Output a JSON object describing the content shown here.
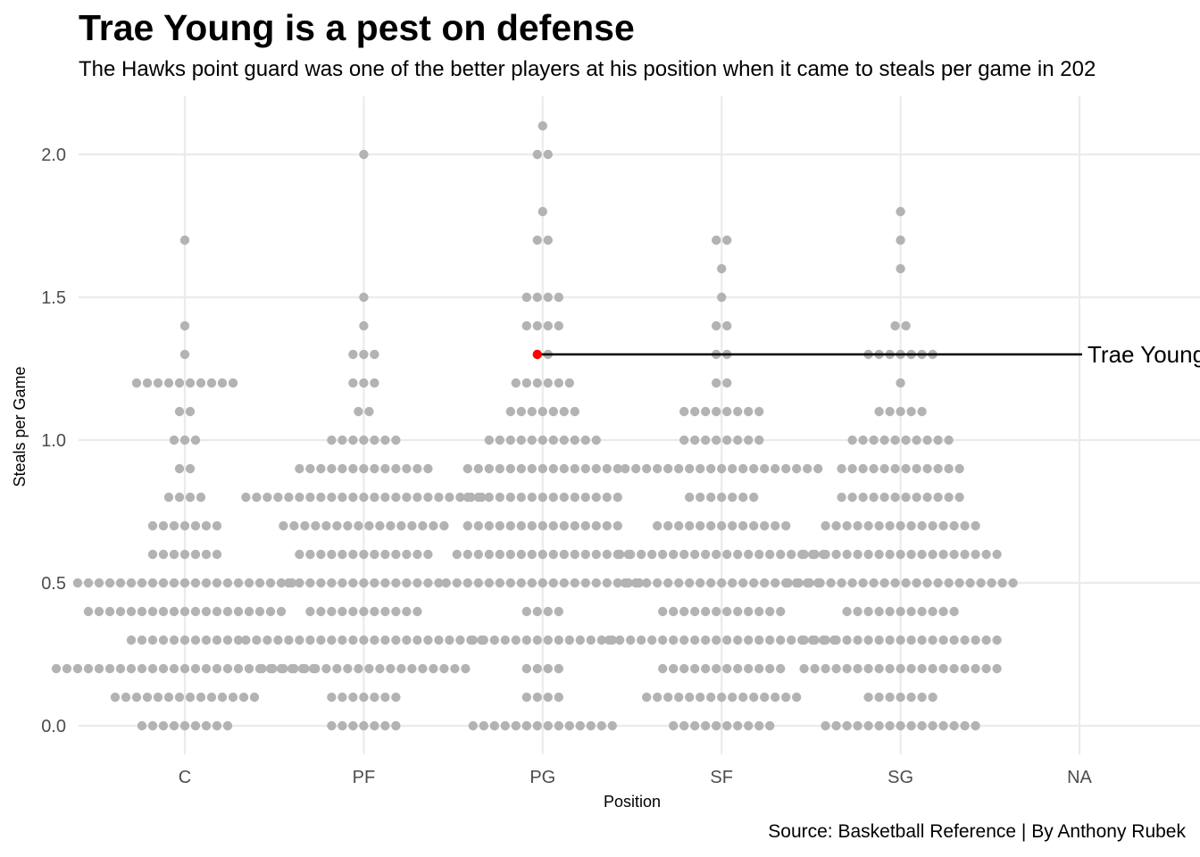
{
  "chart_data": {
    "type": "dotplot",
    "title": "Trae Young is a pest on defense",
    "subtitle": "The Hawks point guard was one of the better players at his position when it came to steals per game in 202",
    "caption": "Source: Basketball Reference | By Anthony Rubek",
    "xlabel": "Position",
    "ylabel": "Steals per Game",
    "categories": [
      "C",
      "PF",
      "PG",
      "SF",
      "SG",
      "NA"
    ],
    "ylim": [
      -0.1,
      2.2
    ],
    "y_ticks": [
      "0.0",
      "0.5",
      "1.0",
      "1.5",
      "2.0"
    ],
    "grid": true,
    "colors": {
      "dot": "#b3b3b3",
      "highlight": "#ff0000",
      "grid": "#ebebeb",
      "line": "#000000"
    },
    "counts": {
      "C": {
        "0.0": 9,
        "0.1": 14,
        "0.2": 25,
        "0.3": 11,
        "0.4": 19,
        "0.5": 21,
        "0.6": 7,
        "0.7": 7,
        "0.8": 4,
        "0.9": 2,
        "1.0": 3,
        "1.1": 2,
        "1.2": 10,
        "1.3": 1,
        "1.4": 1,
        "1.7": 1
      },
      "PF": {
        "0.0": 7,
        "0.1": 7,
        "0.2": 20,
        "0.3": 23,
        "0.4": 11,
        "0.5": 15,
        "0.6": 13,
        "0.7": 16,
        "0.8": 23,
        "0.9": 13,
        "1.0": 7,
        "1.1": 2,
        "1.2": 3,
        "1.3": 3,
        "1.4": 1,
        "1.5": 1,
        "2.0": 1
      },
      "PG": {
        "0.0": 14,
        "0.1": 4,
        "0.2": 4,
        "0.3": 14,
        "0.4": 4,
        "0.5": 19,
        "0.6": 17,
        "0.7": 15,
        "0.8": 15,
        "0.9": 15,
        "1.0": 11,
        "1.1": 7,
        "1.2": 6,
        "1.3": 2,
        "1.4": 4,
        "1.5": 4,
        "1.7": 2,
        "1.8": 1,
        "2.0": 2,
        "2.1": 1
      },
      "SF": {
        "0.0": 10,
        "0.1": 15,
        "0.2": 12,
        "0.3": 22,
        "0.4": 12,
        "0.5": 19,
        "0.6": 20,
        "0.7": 13,
        "0.8": 7,
        "0.9": 19,
        "1.0": 8,
        "1.1": 8,
        "1.2": 2,
        "1.3": 2,
        "1.4": 2,
        "1.5": 1,
        "1.6": 1,
        "1.7": 2
      },
      "SG": {
        "0.0": 15,
        "0.1": 7,
        "0.2": 19,
        "0.3": 19,
        "0.4": 11,
        "0.5": 22,
        "0.6": 19,
        "0.7": 15,
        "0.8": 12,
        "0.9": 12,
        "1.0": 10,
        "1.1": 5,
        "1.2": 1,
        "1.3": 7,
        "1.4": 2,
        "1.6": 1,
        "1.7": 1,
        "1.8": 1
      },
      "NA": {}
    },
    "highlight": {
      "label": "Trae Young",
      "position": "PG",
      "value": 1.3
    }
  }
}
